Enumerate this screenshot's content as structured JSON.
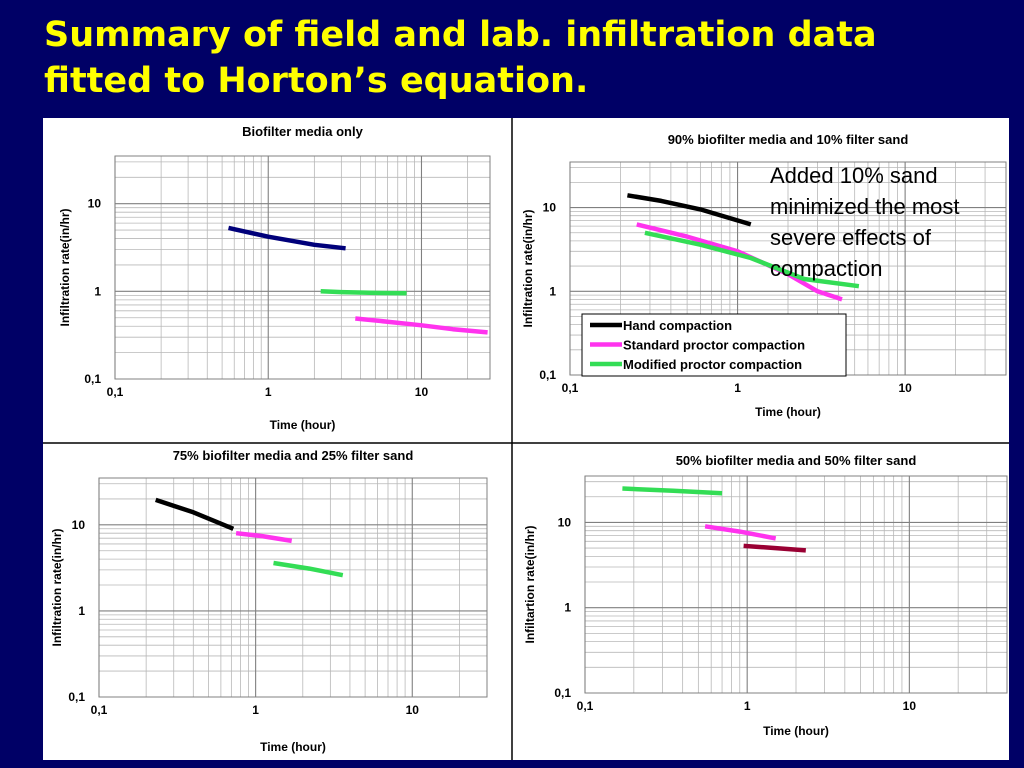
{
  "slide": {
    "title_lines": [
      "Summary of field  and lab. infiltration data",
      "fitted to Horton’s equation."
    ]
  },
  "chart_data": [
    {
      "type": "line",
      "title": "Biofilter media only",
      "xlabel": "Time (hour)",
      "ylabel": "Infiltration rate(in/hr)",
      "xscale": "log",
      "yscale": "log",
      "xlim": [
        0.1,
        28
      ],
      "ylim": [
        0.1,
        35
      ],
      "xticks": [
        {
          "v": 0.1,
          "label": "0,1"
        },
        {
          "v": 1,
          "label": "1"
        },
        {
          "v": 10,
          "label": "10"
        }
      ],
      "yticks": [
        {
          "v": 0.1,
          "label": "0,1"
        },
        {
          "v": 1,
          "label": "1"
        },
        {
          "v": 10,
          "label": "10"
        }
      ],
      "grid": true,
      "legend": null,
      "series": [
        {
          "color": "#00007a",
          "x": [
            0.55,
            1,
            2,
            3.2
          ],
          "y": [
            5.3,
            4.2,
            3.4,
            3.1
          ]
        },
        {
          "color": "#33dd55",
          "x": [
            2.2,
            3,
            5,
            8
          ],
          "y": [
            1.0,
            0.98,
            0.96,
            0.95
          ]
        },
        {
          "color": "#ff33ee",
          "x": [
            3.7,
            6,
            10,
            16,
            27
          ],
          "y": [
            0.49,
            0.45,
            0.41,
            0.37,
            0.34
          ]
        }
      ]
    },
    {
      "type": "line",
      "title": "90% biofilter media and 10% filter sand",
      "xlabel": "Time (hour)",
      "ylabel": "Infiltration rate(in/hr)",
      "xscale": "log",
      "yscale": "log",
      "xlim": [
        0.1,
        40
      ],
      "ylim": [
        0.1,
        35
      ],
      "xticks": [
        {
          "v": 0.1,
          "label": "0,1"
        },
        {
          "v": 1,
          "label": "1"
        },
        {
          "v": 10,
          "label": "10"
        }
      ],
      "yticks": [
        {
          "v": 0.1,
          "label": "0,1"
        },
        {
          "v": 1,
          "label": "1"
        },
        {
          "v": 10,
          "label": "10"
        }
      ],
      "grid": true,
      "legend": "bottom-center",
      "annotation": "Added 10% sand minimized the most severe effects of compaction",
      "series": [
        {
          "name": "Hand compaction",
          "color": "#000000",
          "x": [
            0.22,
            0.35,
            0.6,
            1.2
          ],
          "y": [
            14,
            12,
            9.5,
            6.3
          ]
        },
        {
          "name": "Standard proctor compaction",
          "color": "#ff33ee",
          "x": [
            0.25,
            0.5,
            1,
            2,
            3,
            4.2
          ],
          "y": [
            6.3,
            4.5,
            3.0,
            1.6,
            1.0,
            0.8
          ]
        },
        {
          "name": "Modified proctor compaction",
          "color": "#33dd55",
          "x": [
            0.28,
            0.6,
            1.2,
            2.5,
            5.3
          ],
          "y": [
            5.0,
            3.6,
            2.5,
            1.4,
            1.15
          ]
        }
      ]
    },
    {
      "type": "line",
      "title": "75% biofilter media and 25% filter sand",
      "xlabel": "Time (hour)",
      "ylabel": "Infiltration rate(in/hr)",
      "xscale": "log",
      "yscale": "log",
      "xlim": [
        0.1,
        30
      ],
      "ylim": [
        0.1,
        35
      ],
      "xticks": [
        {
          "v": 0.1,
          "label": "0,1"
        },
        {
          "v": 1,
          "label": "1"
        },
        {
          "v": 10,
          "label": "10"
        }
      ],
      "yticks": [
        {
          "v": 0.1,
          "label": "0,1"
        },
        {
          "v": 1,
          "label": "1"
        },
        {
          "v": 10,
          "label": "10"
        }
      ],
      "grid": true,
      "legend": null,
      "series": [
        {
          "color": "#000000",
          "x": [
            0.23,
            0.4,
            0.72
          ],
          "y": [
            19.5,
            14,
            9
          ]
        },
        {
          "color": "#ff33ee",
          "x": [
            0.75,
            1.1,
            1.7
          ],
          "y": [
            8.0,
            7.4,
            6.5
          ]
        },
        {
          "color": "#33dd55",
          "x": [
            1.3,
            2.2,
            3.6
          ],
          "y": [
            3.6,
            3.1,
            2.6
          ]
        }
      ]
    },
    {
      "type": "line",
      "title": "50% biofilter media and 50% filter sand",
      "xlabel": "Time (hour)",
      "ylabel": "Infiltartion rate(in/hr)",
      "xscale": "log",
      "yscale": "log",
      "xlim": [
        0.1,
        40
      ],
      "ylim": [
        0.1,
        35
      ],
      "xticks": [
        {
          "v": 0.1,
          "label": "0,1"
        },
        {
          "v": 1,
          "label": "1"
        },
        {
          "v": 10,
          "label": "10"
        }
      ],
      "yticks": [
        {
          "v": 0.1,
          "label": "0,1"
        },
        {
          "v": 1,
          "label": "1"
        },
        {
          "v": 10,
          "label": "10"
        }
      ],
      "grid": true,
      "legend": null,
      "series": [
        {
          "color": "#33dd55",
          "x": [
            0.17,
            0.35,
            0.7
          ],
          "y": [
            25,
            23.5,
            22
          ]
        },
        {
          "color": "#ff33ee",
          "x": [
            0.55,
            0.9,
            1.5
          ],
          "y": [
            9.0,
            7.8,
            6.5
          ]
        },
        {
          "color": "#990033",
          "x": [
            0.95,
            1.5,
            2.3
          ],
          "y": [
            5.3,
            5.0,
            4.7
          ]
        }
      ]
    }
  ]
}
